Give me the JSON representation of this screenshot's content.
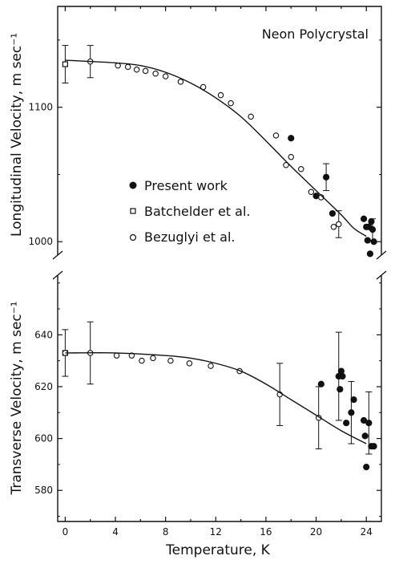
{
  "figure": {
    "title": "Neon Polycrystal",
    "xlabel": "Temperature, K",
    "legend": [
      {
        "marker": "filled-circle",
        "label": "Present work"
      },
      {
        "marker": "open-square",
        "label": "Batchelder et al."
      },
      {
        "marker": "open-circle",
        "label": "Bezuglyi et al."
      }
    ]
  },
  "chart_data": [
    {
      "type": "scatter",
      "panel": "top",
      "title": "Neon Polycrystal",
      "ylabel": "Longitudinal Velocity, m sec⁻¹",
      "xlim": [
        -0.6,
        25.2
      ],
      "ylim": [
        990,
        1175
      ],
      "x_ticks": [
        0,
        4,
        8,
        12,
        16,
        20,
        24
      ],
      "y_ticks": [
        1000,
        1100
      ],
      "grid": false,
      "legend_position": "middle-left",
      "series": [
        {
          "name": "Present work",
          "marker": "filled-circle",
          "points": [
            [
              18.0,
              1077,
              null
            ],
            [
              20.0,
              1034,
              null
            ],
            [
              20.8,
              1048,
              10
            ],
            [
              21.3,
              1021,
              null
            ],
            [
              23.8,
              1017,
              null
            ],
            [
              24.0,
              1011,
              null
            ],
            [
              24.1,
              1001,
              null
            ],
            [
              24.2,
              1011,
              null
            ],
            [
              24.3,
              991,
              null
            ],
            [
              24.4,
              1015,
              null
            ],
            [
              24.5,
              1009,
              8
            ],
            [
              24.6,
              1000,
              null
            ]
          ]
        },
        {
          "name": "Batchelder et al.",
          "marker": "open-square",
          "points": [
            [
              0,
              1132,
              14
            ]
          ]
        },
        {
          "name": "Bezuglyi et al.",
          "marker": "open-circle",
          "points": [
            [
              2,
              1134,
              12
            ],
            [
              4.2,
              1131,
              null
            ],
            [
              5.0,
              1130,
              null
            ],
            [
              5.7,
              1128,
              null
            ],
            [
              6.4,
              1127,
              null
            ],
            [
              7.2,
              1125,
              null
            ],
            [
              8.0,
              1123,
              null
            ],
            [
              9.2,
              1119,
              null
            ],
            [
              11.0,
              1115,
              null
            ],
            [
              12.4,
              1109,
              null
            ],
            [
              13.2,
              1103,
              null
            ],
            [
              14.8,
              1093,
              null
            ],
            [
              16.8,
              1079,
              null
            ],
            [
              17.6,
              1057,
              null
            ],
            [
              18.0,
              1063,
              null
            ],
            [
              18.8,
              1054,
              null
            ],
            [
              19.6,
              1037,
              null
            ],
            [
              20.4,
              1033,
              null
            ],
            [
              21.4,
              1011,
              null
            ],
            [
              21.8,
              1013,
              10
            ]
          ]
        },
        {
          "name": "",
          "type": "line",
          "curve": "fit",
          "points": [
            [
              0,
              1135
            ],
            [
              4,
              1133
            ],
            [
              6,
              1131
            ],
            [
              8,
              1126
            ],
            [
              10,
              1118
            ],
            [
              12,
              1107
            ],
            [
              14,
              1093
            ],
            [
              16,
              1075
            ],
            [
              18,
              1056
            ],
            [
              20,
              1038
            ],
            [
              22,
              1020
            ],
            [
              23,
              1010
            ],
            [
              24,
              1004
            ]
          ]
        }
      ]
    },
    {
      "type": "scatter",
      "panel": "bottom",
      "ylabel": "Transverse Velocity, m sec⁻¹",
      "xlabel": "Temperature, K",
      "xlim": [
        -0.6,
        25.2
      ],
      "ylim": [
        568,
        663
      ],
      "x_ticks": [
        0,
        4,
        8,
        12,
        16,
        20,
        24
      ],
      "y_ticks": [
        580,
        600,
        620,
        640
      ],
      "grid": false,
      "series": [
        {
          "name": "Present work",
          "marker": "filled-circle",
          "points": [
            [
              20.4,
              621,
              null
            ],
            [
              21.8,
              624,
              17
            ],
            [
              21.9,
              619,
              null
            ],
            [
              22.0,
              626,
              null
            ],
            [
              22.1,
              624,
              null
            ],
            [
              22.4,
              606,
              null
            ],
            [
              22.8,
              610,
              12
            ],
            [
              23.0,
              615,
              null
            ],
            [
              23.8,
              607,
              null
            ],
            [
              23.9,
              601,
              null
            ],
            [
              24.0,
              589,
              null
            ],
            [
              24.2,
              606,
              12
            ],
            [
              24.4,
              597,
              null
            ],
            [
              24.6,
              597,
              null
            ]
          ]
        },
        {
          "name": "Batchelder et al.",
          "marker": "open-square",
          "points": [
            [
              0,
              633,
              9
            ]
          ]
        },
        {
          "name": "Bezuglyi et al.",
          "marker": "open-circle",
          "points": [
            [
              0,
              633,
              null
            ],
            [
              2,
              633,
              12
            ],
            [
              4.1,
              632,
              null
            ],
            [
              5.3,
              632,
              null
            ],
            [
              6.1,
              630,
              null
            ],
            [
              7.0,
              631,
              null
            ],
            [
              8.4,
              630,
              null
            ],
            [
              9.9,
              629,
              null
            ],
            [
              11.6,
              628,
              null
            ],
            [
              13.9,
              626,
              null
            ],
            [
              17.1,
              617,
              12
            ],
            [
              20.2,
              608,
              12
            ]
          ]
        },
        {
          "name": "",
          "type": "line",
          "curve": "fit",
          "points": [
            [
              0,
              633
            ],
            [
              4,
              633
            ],
            [
              8,
              632
            ],
            [
              10,
              631
            ],
            [
              12,
              629
            ],
            [
              14,
              626
            ],
            [
              16,
              621
            ],
            [
              18,
              615
            ],
            [
              20,
              609
            ],
            [
              22,
              603
            ],
            [
              24,
              598
            ]
          ]
        }
      ]
    }
  ]
}
